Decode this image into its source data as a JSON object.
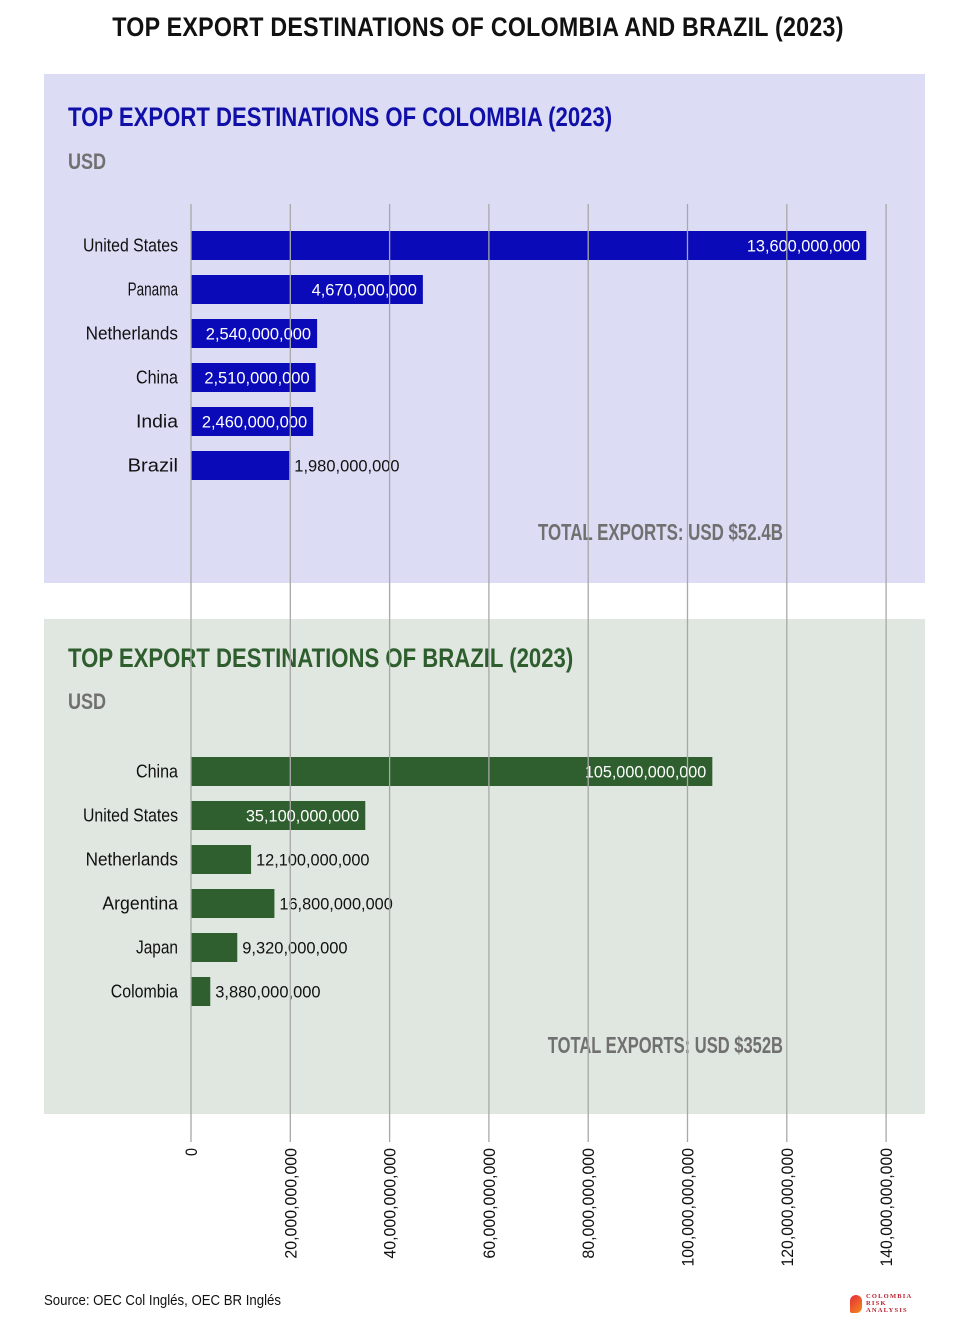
{
  "main_title": "TOP EXPORT DESTINATIONS OF COLOMBIA AND BRAZIL (2023)",
  "source": "Source: OEC Col Inglés, OEC BR Inglés",
  "logo": {
    "lines": [
      "COLOMBIA",
      "RISK",
      "ANALYSIS"
    ]
  },
  "colors": {
    "colombia_bar": "#0a0ab8",
    "brazil_bar": "#2f5f2f",
    "colombia_panel": "#dcdcf5",
    "brazil_panel": "#e0e6e0",
    "colombia_title": "#1010a8",
    "brazil_title": "#2e5e2e"
  },
  "chart_data": [
    {
      "type": "bar",
      "orientation": "horizontal",
      "title": "TOP EXPORT DESTINATIONS OF COLOMBIA (2023)",
      "unit": "USD",
      "categories": [
        "United States",
        "Panama",
        "Netherlands",
        "China",
        "India",
        "Brazil"
      ],
      "values": [
        13600000000,
        4670000000,
        2540000000,
        2510000000,
        2460000000,
        1980000000
      ],
      "value_labels": [
        "13,600,000,000",
        "4,670,000,000",
        "2,540,000,000",
        "2,510,000,000",
        "2,460,000,000",
        "1,980,000,000"
      ],
      "annotation": "TOTAL EXPORTS: USD $52.4B",
      "color": "#0a0ab8"
    },
    {
      "type": "bar",
      "orientation": "horizontal",
      "title": "TOP EXPORT DESTINATIONS OF BRAZIL (2023)",
      "unit": "USD",
      "categories": [
        "China",
        "United States",
        "Netherlands",
        "Argentina",
        "Japan",
        "Colombia"
      ],
      "values": [
        105000000000,
        35100000000,
        12100000000,
        16800000000,
        9320000000,
        3880000000
      ],
      "value_labels": [
        "105,000,000,000",
        "35,100,000,000",
        "12,100,000,000",
        "16,800,000,000",
        "9,320,000,000",
        "3,880,000,000"
      ],
      "annotation": "TOTAL EXPORTS: USD $352B",
      "color": "#2f5f2f"
    }
  ],
  "axis": {
    "ticks": [
      0,
      20000000000,
      40000000000,
      60000000000,
      80000000000,
      100000000000,
      120000000000,
      140000000000
    ],
    "tick_labels": [
      "0",
      "20,000,000,000",
      "40,000,000,000",
      "60,000,000,000",
      "80,000,000,000",
      "100,000,000,000",
      "120,000,000,000",
      "140,000,000,000"
    ],
    "grid": true,
    "xlim": [
      0,
      140000000000
    ]
  }
}
